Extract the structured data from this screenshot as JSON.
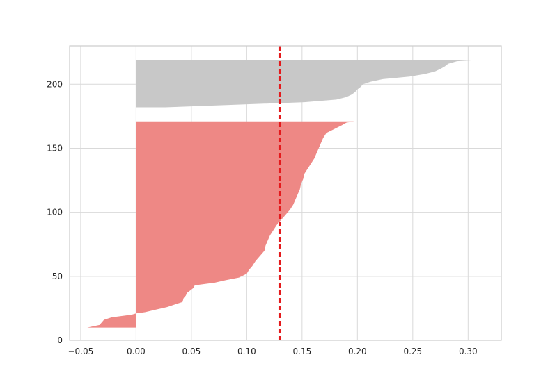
{
  "chart_data": {
    "type": "area",
    "title": "",
    "xlabel": "",
    "ylabel": "",
    "xlim": [
      -0.06,
      0.33
    ],
    "ylim": [
      0,
      230
    ],
    "grid": true,
    "x_ticks": [
      -0.05,
      0.0,
      0.05,
      0.1,
      0.15,
      0.2,
      0.25,
      0.3
    ],
    "x_tick_labels": [
      "−0.05",
      "0.00",
      "0.05",
      "0.10",
      "0.15",
      "0.20",
      "0.25",
      "0.30"
    ],
    "y_ticks": [
      0,
      50,
      100,
      150,
      200
    ],
    "y_tick_labels": [
      "0",
      "50",
      "100",
      "150",
      "200"
    ],
    "series": [
      {
        "color": "#ee8885",
        "y_range": [
          10,
          171
        ],
        "profile": [
          [
            10,
            -0.044
          ],
          [
            12,
            -0.033
          ],
          [
            14,
            -0.031
          ],
          [
            16,
            -0.029
          ],
          [
            18,
            -0.022
          ],
          [
            20,
            -0.004
          ],
          [
            21,
            0.0
          ],
          [
            22,
            0.008
          ],
          [
            24,
            0.018
          ],
          [
            26,
            0.028
          ],
          [
            28,
            0.035
          ],
          [
            30,
            0.042
          ],
          [
            33,
            0.043
          ],
          [
            35,
            0.045
          ],
          [
            37,
            0.046
          ],
          [
            39,
            0.049
          ],
          [
            41,
            0.052
          ],
          [
            43,
            0.053
          ],
          [
            45,
            0.071
          ],
          [
            47,
            0.081
          ],
          [
            49,
            0.093
          ],
          [
            52,
            0.1
          ],
          [
            55,
            0.102
          ],
          [
            58,
            0.105
          ],
          [
            62,
            0.108
          ],
          [
            66,
            0.112
          ],
          [
            70,
            0.116
          ],
          [
            74,
            0.117
          ],
          [
            78,
            0.119
          ],
          [
            82,
            0.121
          ],
          [
            86,
            0.124
          ],
          [
            90,
            0.127
          ],
          [
            94,
            0.131
          ],
          [
            98,
            0.135
          ],
          [
            102,
            0.139
          ],
          [
            106,
            0.142
          ],
          [
            110,
            0.144
          ],
          [
            114,
            0.146
          ],
          [
            118,
            0.148
          ],
          [
            122,
            0.149
          ],
          [
            126,
            0.151
          ],
          [
            130,
            0.152
          ],
          [
            134,
            0.155
          ],
          [
            138,
            0.158
          ],
          [
            142,
            0.161
          ],
          [
            146,
            0.163
          ],
          [
            150,
            0.165
          ],
          [
            154,
            0.167
          ],
          [
            158,
            0.169
          ],
          [
            162,
            0.172
          ],
          [
            165,
            0.179
          ],
          [
            168,
            0.186
          ],
          [
            170,
            0.19
          ],
          [
            171,
            0.197
          ]
        ]
      },
      {
        "color": "#c8c8c8",
        "y_range": [
          182,
          219
        ],
        "profile": [
          [
            182,
            0.026
          ],
          [
            184,
            0.09
          ],
          [
            186,
            0.152
          ],
          [
            188,
            0.181
          ],
          [
            190,
            0.19
          ],
          [
            192,
            0.195
          ],
          [
            194,
            0.198
          ],
          [
            196,
            0.2
          ],
          [
            198,
            0.203
          ],
          [
            200,
            0.205
          ],
          [
            202,
            0.212
          ],
          [
            204,
            0.223
          ],
          [
            206,
            0.247
          ],
          [
            208,
            0.261
          ],
          [
            210,
            0.27
          ],
          [
            212,
            0.275
          ],
          [
            214,
            0.279
          ],
          [
            216,
            0.282
          ],
          [
            218,
            0.29
          ],
          [
            219,
            0.312
          ]
        ]
      }
    ],
    "reference_line": {
      "x": 0.13,
      "color": "#e41a1c",
      "style": "dashed"
    }
  }
}
